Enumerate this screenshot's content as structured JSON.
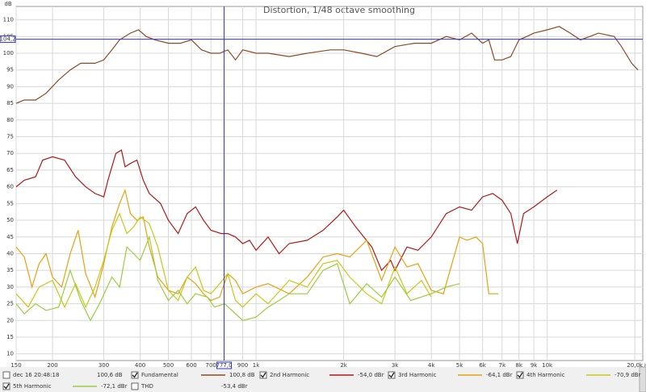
{
  "chart_data": {
    "type": "line",
    "title": "Distortion, 1/48 octave smoothing",
    "y_label": "dB",
    "x_unit": "Hz",
    "log_x": true,
    "grid": true,
    "xlim": [
      150,
      21300
    ],
    "ylim": [
      8,
      114
    ],
    "xticks": [
      150,
      200,
      300,
      400,
      500,
      600,
      700,
      900,
      {
        "value": 1000,
        "label": "1k"
      },
      {
        "value": 2000,
        "label": "2k"
      },
      {
        "value": 3000,
        "label": "3k"
      },
      {
        "value": 4000,
        "label": "4k"
      },
      {
        "value": 5000,
        "label": "5k"
      },
      {
        "value": 6000,
        "label": "6k"
      },
      {
        "value": 7000,
        "label": "7k"
      },
      {
        "value": 8000,
        "label": "8k"
      },
      {
        "value": 9000,
        "label": "9k"
      },
      {
        "value": 10000,
        "label": "10k"
      },
      {
        "value": 20000,
        "label": "20,0k"
      }
    ],
    "yticks": [
      10,
      15,
      20,
      25,
      30,
      35,
      40,
      45,
      50,
      55,
      60,
      65,
      70,
      75,
      80,
      85,
      90,
      95,
      100,
      105,
      110
    ],
    "cursor": {
      "x": 777,
      "x_label": "777,0",
      "y": 104.2,
      "y_label": "104,2"
    },
    "timestamp": {
      "name": "dec 16 20:48:18",
      "readout": "100,6 dB",
      "checked": false
    },
    "series": [
      {
        "name": "Fundamental",
        "color": "#8b4a26",
        "readout": "100,8 dB",
        "checked": true,
        "x": [
          150,
          160,
          175,
          190,
          210,
          230,
          250,
          280,
          300,
          320,
          340,
          370,
          395,
          420,
          450,
          500,
          550,
          600,
          650,
          700,
          750,
          800,
          850,
          900,
          1000,
          1100,
          1300,
          1500,
          1800,
          2000,
          2300,
          2600,
          3000,
          3500,
          4000,
          4500,
          5000,
          5500,
          6000,
          6300,
          6600,
          7000,
          7500,
          8000,
          8500,
          9000,
          10000,
          11000,
          12000,
          13000,
          14000,
          15000,
          17000,
          18000,
          19500,
          20500
        ],
        "values": [
          85,
          86,
          86,
          88,
          92,
          95,
          97,
          97,
          98,
          101,
          104,
          106,
          107,
          105,
          104,
          103,
          103,
          104,
          101,
          100,
          100,
          101,
          98,
          101,
          100,
          100,
          99,
          100,
          101,
          101,
          100,
          99,
          102,
          103,
          103,
          105,
          104,
          106,
          103,
          104,
          98,
          98,
          99,
          104,
          105,
          106,
          107,
          108,
          106,
          104,
          105,
          106,
          105,
          102,
          97,
          95
        ]
      },
      {
        "name": "2nd Harmonic",
        "color": "#b01818",
        "readout": "-54,0 dBr",
        "checked": true,
        "x": [
          150,
          160,
          175,
          185,
          200,
          220,
          240,
          260,
          280,
          300,
          310,
          330,
          345,
          355,
          370,
          390,
          410,
          430,
          470,
          500,
          540,
          580,
          620,
          660,
          700,
          760,
          800,
          850,
          900,
          950,
          1000,
          1100,
          1200,
          1300,
          1500,
          1700,
          1900,
          2000,
          2200,
          2500,
          2700,
          2900,
          3000,
          3300,
          3600,
          4000,
          4500,
          5000,
          5500,
          6000,
          6500,
          7000,
          7500,
          7900,
          8300,
          9000,
          10000,
          10800
        ],
        "values": [
          60,
          62,
          63,
          68,
          69,
          68,
          63,
          60,
          58,
          57,
          62,
          70,
          71,
          66,
          67,
          68,
          62,
          58,
          55,
          50,
          46,
          52,
          54,
          50,
          47,
          46,
          46,
          45,
          43,
          44,
          41,
          45,
          40,
          43,
          44,
          47,
          51,
          53,
          48,
          42,
          35,
          38,
          35,
          42,
          41,
          45,
          52,
          54,
          53,
          57,
          58,
          56,
          52,
          43,
          52,
          54,
          57,
          59
        ]
      },
      {
        "name": "3rd Harmonic",
        "color": "#e8a010",
        "readout": "-64,1 dBr",
        "checked": true,
        "x": [
          150,
          160,
          170,
          180,
          190,
          200,
          215,
          230,
          245,
          260,
          280,
          300,
          320,
          340,
          355,
          370,
          390,
          410,
          430,
          460,
          500,
          540,
          580,
          620,
          660,
          700,
          750,
          800,
          850,
          900,
          1000,
          1100,
          1300,
          1500,
          1700,
          1900,
          2100,
          2400,
          2700,
          3000,
          3300,
          3600,
          4000,
          4400,
          5000,
          5300,
          5700,
          6000,
          6300,
          6800
        ],
        "values": [
          42,
          39,
          30,
          37,
          40,
          33,
          30,
          40,
          47,
          34,
          27,
          37,
          48,
          55,
          59,
          52,
          50,
          51,
          42,
          33,
          29,
          28,
          33,
          31,
          28,
          26,
          27,
          34,
          32,
          28,
          30,
          31,
          28,
          33,
          39,
          40,
          39,
          44,
          32,
          42,
          36,
          37,
          29,
          28,
          45,
          44,
          45,
          43,
          28,
          28
        ]
      },
      {
        "name": "4th Harmonic",
        "color": "#c8c818",
        "readout": "-70,9 dBr",
        "checked": true,
        "x": [
          150,
          165,
          180,
          200,
          220,
          240,
          260,
          280,
          300,
          320,
          340,
          360,
          380,
          400,
          430,
          460,
          500,
          540,
          580,
          620,
          660,
          700,
          750,
          800,
          850,
          900,
          1000,
          1100,
          1300,
          1500,
          1700,
          1900,
          2100,
          2400,
          2700,
          3000,
          3300,
          3700,
          4000
        ],
        "values": [
          28,
          24,
          30,
          32,
          24,
          31,
          24,
          30,
          38,
          47,
          52,
          46,
          48,
          51,
          49,
          42,
          29,
          26,
          33,
          36,
          29,
          28,
          31,
          34,
          26,
          24,
          28,
          25,
          32,
          30,
          37,
          38,
          33,
          28,
          25,
          36,
          28,
          32,
          27
        ]
      },
      {
        "name": "5th Harmonic",
        "color": "#9ccc40",
        "readout": "-72,1 dBr",
        "checked": true,
        "x": [
          150,
          160,
          175,
          190,
          210,
          230,
          250,
          270,
          290,
          320,
          340,
          360,
          380,
          400,
          430,
          460,
          500,
          540,
          580,
          620,
          680,
          720,
          780,
          850,
          900,
          1000,
          1100,
          1200,
          1300,
          1500,
          1700,
          1900,
          2100,
          2400,
          2700,
          3000,
          3400,
          4000,
          4500,
          5000
        ],
        "values": [
          25,
          22,
          25,
          23,
          24,
          35,
          26,
          20,
          25,
          33,
          30,
          42,
          40,
          38,
          45,
          32,
          26,
          29,
          25,
          28,
          27,
          24,
          25,
          22,
          20,
          21,
          24,
          26,
          28,
          28,
          35,
          37,
          25,
          31,
          27,
          33,
          26,
          28,
          30,
          31
        ]
      }
    ],
    "thd": {
      "name": "THD",
      "readout": "-53,4 dBr",
      "checked": false
    }
  }
}
